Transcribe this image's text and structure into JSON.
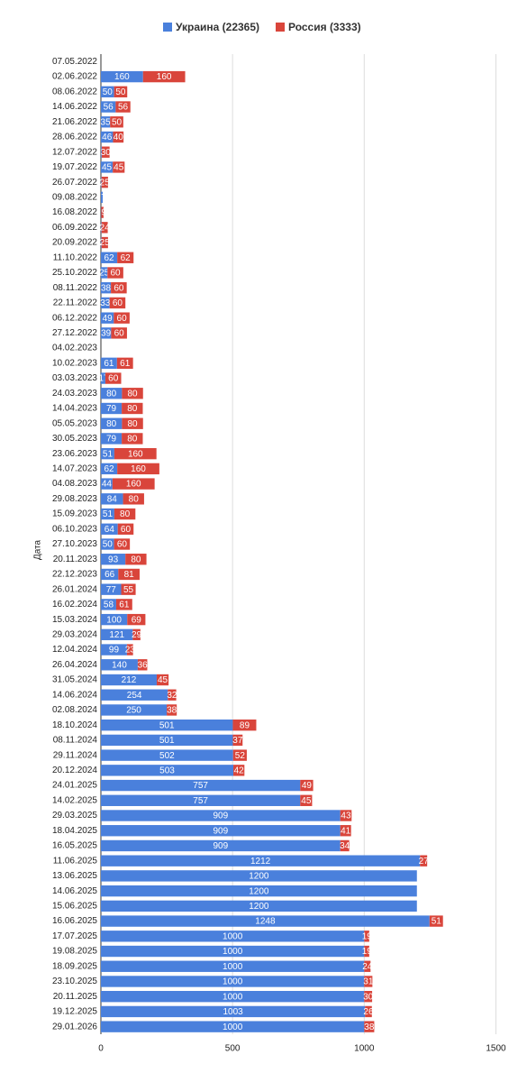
{
  "chart_data": {
    "type": "bar",
    "orientation": "horizontal",
    "stacked": true,
    "ylabel": "Дата",
    "categories": [
      "07.05.2022",
      "02.06.2022",
      "08.06.2022",
      "14.06.2022",
      "21.06.2022",
      "28.06.2022",
      "12.07.2022",
      "19.07.2022",
      "26.07.2022",
      "09.08.2022",
      "16.08.2022",
      "06.09.2022",
      "20.09.2022",
      "11.10.2022",
      "25.10.2022",
      "08.11.2022",
      "22.11.2022",
      "06.12.2022",
      "27.12.2022",
      "04.02.2023",
      "10.02.2023",
      "03.03.2023",
      "24.03.2023",
      "14.04.2023",
      "05.05.2023",
      "30.05.2023",
      "23.06.2023",
      "14.07.2023",
      "04.08.2023",
      "29.08.2023",
      "15.09.2023",
      "06.10.2023",
      "27.10.2023",
      "20.11.2023",
      "22.12.2023",
      "26.01.2024",
      "16.02.2024",
      "15.03.2024",
      "29.03.2024",
      "12.04.2024",
      "26.04.2024",
      "31.05.2024",
      "14.06.2024",
      "02.08.2024",
      "18.10.2024",
      "08.11.2024",
      "29.11.2024",
      "20.12.2024",
      "24.01.2025",
      "14.02.2025",
      "29.03.2025",
      "18.04.2025",
      "16.05.2025",
      "11.06.2025",
      "13.06.2025",
      "14.06.2025",
      "15.06.2025",
      "16.06.2025",
      "17.07.2025",
      "19.08.2025",
      "18.09.2025",
      "23.10.2025",
      "20.11.2025",
      "19.12.2025",
      "29.01.2026"
    ],
    "series": [
      {
        "name": "Украина (22365)",
        "color": "#4a80dc",
        "values": [
          null,
          160,
          50,
          56,
          35,
          46,
          3,
          45,
          2,
          7,
          1,
          2,
          2,
          62,
          25,
          38,
          33,
          49,
          39,
          0,
          61,
          17,
          80,
          79,
          80,
          79,
          51,
          62,
          44,
          84,
          51,
          64,
          50,
          93,
          66,
          77,
          58,
          100,
          121,
          99,
          140,
          212,
          254,
          250,
          501,
          501,
          502,
          503,
          757,
          757,
          909,
          909,
          909,
          1212,
          1200,
          1200,
          1200,
          1248,
          1000,
          1000,
          1000,
          1000,
          1000,
          1003,
          1000
        ]
      },
      {
        "name": "Россия (3333)",
        "color": "#d9453b",
        "values": [
          null,
          160,
          50,
          56,
          50,
          40,
          30,
          45,
          25,
          null,
          9,
          24,
          25,
          62,
          60,
          60,
          60,
          60,
          60,
          null,
          61,
          60,
          80,
          80,
          80,
          80,
          160,
          160,
          160,
          80,
          80,
          60,
          60,
          80,
          81,
          55,
          61,
          69,
          29,
          23,
          36,
          45,
          32,
          38,
          89,
          37,
          52,
          42,
          49,
          45,
          43,
          41,
          34,
          27,
          null,
          null,
          null,
          51,
          19,
          19,
          24,
          31,
          30,
          26,
          38
        ]
      }
    ],
    "xlim": [
      0,
      1560
    ],
    "xticks": [
      0,
      500,
      1000,
      1500
    ],
    "grid": true
  }
}
